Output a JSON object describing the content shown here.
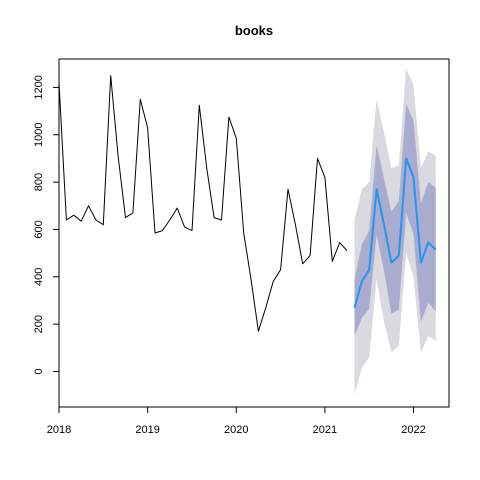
{
  "chart_data": {
    "type": "line",
    "title": "books",
    "xlabel": "",
    "ylabel": "",
    "xlim": [
      2018,
      2022.4
    ],
    "ylim": [
      -150,
      1320
    ],
    "x_ticks": [
      2018,
      2019,
      2020,
      2021,
      2022
    ],
    "x_tick_labels": [
      "2018",
      "2019",
      "2020",
      "2021",
      "2022"
    ],
    "y_ticks": [
      0,
      200,
      400,
      600,
      800,
      1000,
      1200
    ],
    "y_tick_labels": [
      "0",
      "200",
      "400",
      "600",
      "800",
      "1000",
      "1200"
    ],
    "grid": false,
    "legend": "none",
    "colors": {
      "history": "#000000",
      "forecast": "#2196f3",
      "band_80": "#a9abcf",
      "band_95": "#d9d9df"
    },
    "series": [
      {
        "role": "history",
        "x": [
          "2018-01",
          "2018-02",
          "2018-03",
          "2018-04",
          "2018-05",
          "2018-06",
          "2018-07",
          "2018-08",
          "2018-09",
          "2018-10",
          "2018-11",
          "2018-12",
          "2019-01",
          "2019-02",
          "2019-03",
          "2019-04",
          "2019-05",
          "2019-06",
          "2019-07",
          "2019-08",
          "2019-09",
          "2019-10",
          "2019-11",
          "2019-12",
          "2020-01",
          "2020-02",
          "2020-03",
          "2020-04",
          "2020-05",
          "2020-06",
          "2020-07",
          "2020-08",
          "2020-09",
          "2020-10",
          "2020-11",
          "2020-12",
          "2021-01",
          "2021-02",
          "2021-03",
          "2021-04"
        ],
        "values": [
          1220,
          640,
          660,
          635,
          700,
          640,
          620,
          1250,
          910,
          650,
          670,
          1150,
          1030,
          585,
          595,
          640,
          690,
          610,
          595,
          1125,
          860,
          650,
          640,
          1075,
          985,
          585,
          390,
          170,
          270,
          380,
          430,
          770,
          620,
          455,
          490,
          900,
          820,
          465,
          545,
          510
        ]
      },
      {
        "role": "forecast",
        "x": [
          "2021-05",
          "2021-06",
          "2021-07",
          "2021-08",
          "2021-09",
          "2021-10",
          "2021-11",
          "2021-12",
          "2022-01",
          "2022-02",
          "2022-03",
          "2022-04"
        ],
        "values": [
          270,
          380,
          430,
          770,
          620,
          460,
          490,
          900,
          820,
          460,
          545,
          515
        ],
        "lo80": [
          150,
          225,
          265,
          580,
          425,
          245,
          260,
          670,
          580,
          210,
          290,
          255
        ],
        "hi80": [
          390,
          535,
          595,
          955,
          815,
          675,
          720,
          1130,
          1060,
          710,
          800,
          775
        ],
        "lo95": [
          -100,
          15,
          60,
          390,
          210,
          80,
          110,
          500,
          400,
          80,
          150,
          130
        ],
        "hi95": [
          640,
          770,
          800,
          1150,
          1010,
          860,
          870,
          1280,
          1210,
          860,
          930,
          910
        ]
      }
    ]
  }
}
